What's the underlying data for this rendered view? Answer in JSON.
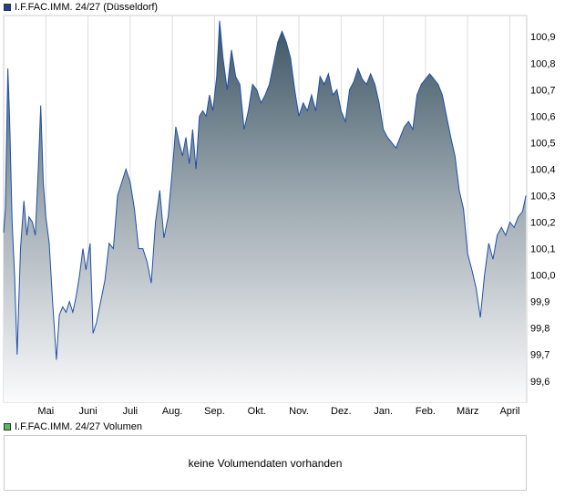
{
  "price_legend": {
    "label": "I.F.FAC.IMM. 24/27 (Düsseldorf)",
    "color": "#1f3f8f"
  },
  "volume_legend": {
    "label": "I.F.FAC.IMM. 24/27 Volumen",
    "color": "#5cb85c"
  },
  "volume_panel": {
    "message": "keine Volumendaten vorhanden"
  },
  "chart_data": {
    "type": "area",
    "ylim": [
      99.52,
      100.98
    ],
    "y_ticks": [
      "99,6",
      "99,7",
      "99,8",
      "99,9",
      "100,0",
      "100,1",
      "100,2",
      "100,3",
      "100,4",
      "100,5",
      "100,6",
      "100,7",
      "100,8",
      "100,9"
    ],
    "y_tick_values": [
      99.6,
      99.7,
      99.8,
      99.9,
      100.0,
      100.1,
      100.2,
      100.3,
      100.4,
      100.5,
      100.6,
      100.7,
      100.8,
      100.9
    ],
    "x_ticks": [
      "Mai",
      "Juni",
      "Juli",
      "Aug.",
      "Sep.",
      "Okt.",
      "Nov.",
      "Dez.",
      "Jan.",
      "Feb.",
      "März",
      "April"
    ],
    "x_tick_months": [
      1,
      2,
      3,
      4,
      5,
      6,
      7,
      8,
      9,
      10,
      11,
      12
    ],
    "x_range_months": [
      0,
      12.4
    ],
    "series": [
      {
        "color": "#1f4fa8",
        "points": [
          [
            0.0,
            100.16
          ],
          [
            0.04,
            100.25
          ],
          [
            0.1,
            100.78
          ],
          [
            0.14,
            100.6
          ],
          [
            0.2,
            100.2
          ],
          [
            0.26,
            100.0
          ],
          [
            0.32,
            99.7
          ],
          [
            0.4,
            100.1
          ],
          [
            0.48,
            100.28
          ],
          [
            0.55,
            100.15
          ],
          [
            0.6,
            100.22
          ],
          [
            0.68,
            100.2
          ],
          [
            0.75,
            100.15
          ],
          [
            0.82,
            100.4
          ],
          [
            0.88,
            100.64
          ],
          [
            0.94,
            100.35
          ],
          [
            1.0,
            100.22
          ],
          [
            1.08,
            100.12
          ],
          [
            1.16,
            99.9
          ],
          [
            1.25,
            99.68
          ],
          [
            1.32,
            99.85
          ],
          [
            1.4,
            99.88
          ],
          [
            1.48,
            99.86
          ],
          [
            1.56,
            99.9
          ],
          [
            1.64,
            99.86
          ],
          [
            1.72,
            99.92
          ],
          [
            1.8,
            100.0
          ],
          [
            1.88,
            100.1
          ],
          [
            1.95,
            100.02
          ],
          [
            2.05,
            100.12
          ],
          [
            2.12,
            99.78
          ],
          [
            2.2,
            99.82
          ],
          [
            2.3,
            99.9
          ],
          [
            2.4,
            99.98
          ],
          [
            2.5,
            100.12
          ],
          [
            2.6,
            100.1
          ],
          [
            2.7,
            100.3
          ],
          [
            2.8,
            100.35
          ],
          [
            2.9,
            100.4
          ],
          [
            3.0,
            100.35
          ],
          [
            3.1,
            100.25
          ],
          [
            3.2,
            100.1
          ],
          [
            3.3,
            100.1
          ],
          [
            3.4,
            100.05
          ],
          [
            3.5,
            99.97
          ],
          [
            3.6,
            100.2
          ],
          [
            3.7,
            100.32
          ],
          [
            3.8,
            100.14
          ],
          [
            3.9,
            100.22
          ],
          [
            4.0,
            100.4
          ],
          [
            4.08,
            100.56
          ],
          [
            4.16,
            100.5
          ],
          [
            4.24,
            100.45
          ],
          [
            4.32,
            100.52
          ],
          [
            4.4,
            100.42
          ],
          [
            4.48,
            100.55
          ],
          [
            4.56,
            100.4
          ],
          [
            4.64,
            100.6
          ],
          [
            4.72,
            100.62
          ],
          [
            4.8,
            100.6
          ],
          [
            4.88,
            100.68
          ],
          [
            4.96,
            100.62
          ],
          [
            5.05,
            100.75
          ],
          [
            5.12,
            100.96
          ],
          [
            5.2,
            100.82
          ],
          [
            5.3,
            100.7
          ],
          [
            5.4,
            100.85
          ],
          [
            5.5,
            100.75
          ],
          [
            5.6,
            100.72
          ],
          [
            5.7,
            100.55
          ],
          [
            5.8,
            100.62
          ],
          [
            5.9,
            100.72
          ],
          [
            6.0,
            100.7
          ],
          [
            6.1,
            100.65
          ],
          [
            6.2,
            100.68
          ],
          [
            6.3,
            100.72
          ],
          [
            6.4,
            100.8
          ],
          [
            6.5,
            100.88
          ],
          [
            6.6,
            100.92
          ],
          [
            6.7,
            100.88
          ],
          [
            6.8,
            100.82
          ],
          [
            6.9,
            100.7
          ],
          [
            7.0,
            100.6
          ],
          [
            7.1,
            100.65
          ],
          [
            7.2,
            100.62
          ],
          [
            7.3,
            100.68
          ],
          [
            7.4,
            100.62
          ],
          [
            7.5,
            100.75
          ],
          [
            7.6,
            100.72
          ],
          [
            7.7,
            100.76
          ],
          [
            7.8,
            100.68
          ],
          [
            7.9,
            100.7
          ],
          [
            8.0,
            100.62
          ],
          [
            8.1,
            100.58
          ],
          [
            8.2,
            100.7
          ],
          [
            8.3,
            100.73
          ],
          [
            8.4,
            100.78
          ],
          [
            8.5,
            100.74
          ],
          [
            8.6,
            100.72
          ],
          [
            8.7,
            100.76
          ],
          [
            8.8,
            100.72
          ],
          [
            8.9,
            100.65
          ],
          [
            9.0,
            100.55
          ],
          [
            9.1,
            100.52
          ],
          [
            9.2,
            100.5
          ],
          [
            9.3,
            100.48
          ],
          [
            9.4,
            100.52
          ],
          [
            9.5,
            100.56
          ],
          [
            9.6,
            100.58
          ],
          [
            9.7,
            100.55
          ],
          [
            9.8,
            100.68
          ],
          [
            9.9,
            100.72
          ],
          [
            10.0,
            100.74
          ],
          [
            10.1,
            100.76
          ],
          [
            10.2,
            100.74
          ],
          [
            10.3,
            100.72
          ],
          [
            10.4,
            100.68
          ],
          [
            10.5,
            100.6
          ],
          [
            10.6,
            100.52
          ],
          [
            10.7,
            100.45
          ],
          [
            10.8,
            100.32
          ],
          [
            10.9,
            100.25
          ],
          [
            11.0,
            100.08
          ],
          [
            11.1,
            100.02
          ],
          [
            11.2,
            99.95
          ],
          [
            11.3,
            99.84
          ],
          [
            11.4,
            100.0
          ],
          [
            11.5,
            100.12
          ],
          [
            11.6,
            100.06
          ],
          [
            11.7,
            100.15
          ],
          [
            11.8,
            100.18
          ],
          [
            11.9,
            100.15
          ],
          [
            12.0,
            100.2
          ],
          [
            12.1,
            100.18
          ],
          [
            12.2,
            100.22
          ],
          [
            12.3,
            100.24
          ],
          [
            12.38,
            100.3
          ]
        ]
      }
    ],
    "grid": "vertical",
    "legend_position": "top-left"
  }
}
